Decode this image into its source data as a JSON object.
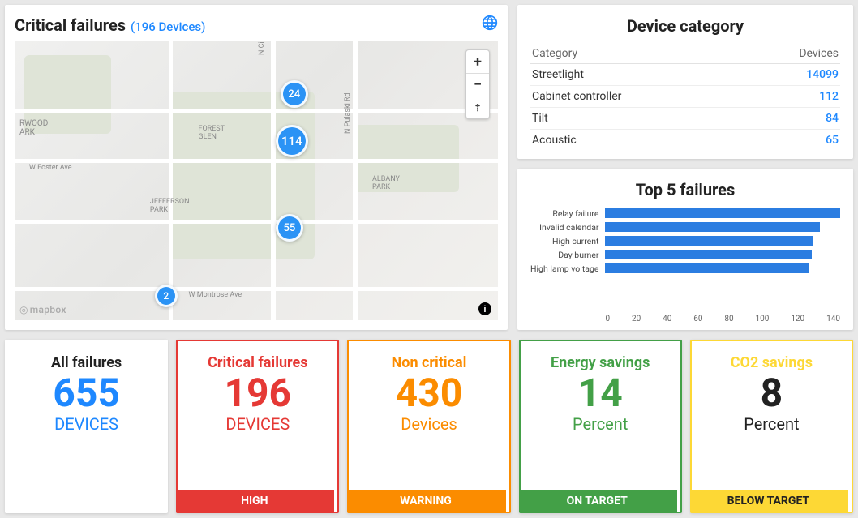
{
  "map": {
    "title": "Critical failures",
    "subtitle": "(196 Devices)",
    "attribution": "mapbox",
    "labels": {
      "rwood": "RWOOD\nARK",
      "forest": "FOREST\nGLEN",
      "jefferson": "JEFFERSON\nPARK",
      "albany": "ALBANY\nPARK",
      "foster": "W Foster Ave",
      "montrose": "W Montrose Ave",
      "cicero": "N Cicero Ave",
      "pulaski": "N Pulaski Rd"
    },
    "clusters": [
      {
        "count": 24,
        "size": "md",
        "left_pct": 55,
        "top_pct": 14
      },
      {
        "count": 114,
        "size": "lg",
        "left_pct": 54,
        "top_pct": 30
      },
      {
        "count": 55,
        "size": "md",
        "left_pct": 54,
        "top_pct": 62
      },
      {
        "count": 2,
        "size": "sm",
        "left_pct": 29,
        "top_pct": 87
      }
    ],
    "controls": {
      "zoom_in": "+",
      "zoom_out": "−",
      "compass": "⇡"
    },
    "info": "i"
  },
  "device_category": {
    "title": "Device category",
    "columns": [
      "Category",
      "Devices"
    ],
    "rows": [
      {
        "name": "Streetlight",
        "count": "14099"
      },
      {
        "name": "Cabinet controller",
        "count": "112"
      },
      {
        "name": "Tilt",
        "count": "84"
      },
      {
        "name": "Acoustic",
        "count": "65"
      }
    ]
  },
  "top_failures": {
    "title": "Top 5 failures",
    "x_max": 150,
    "x_ticks": [
      0,
      20,
      40,
      60,
      80,
      100,
      120,
      140
    ],
    "bar_color": "#2b7de1",
    "items": [
      {
        "label": "Relay failure",
        "value": 150
      },
      {
        "label": "Invalid calendar",
        "value": 137
      },
      {
        "label": "High current",
        "value": 133
      },
      {
        "label": "Day burner",
        "value": 132
      },
      {
        "label": "High lamp voltage",
        "value": 130
      }
    ]
  },
  "kpis": [
    {
      "title": "All failures",
      "value": "655",
      "unit": "DEVICES",
      "accent": "#1e88ff",
      "bordered": false,
      "footer": null,
      "dark_text": false
    },
    {
      "title": "Critical failures",
      "value": "196",
      "unit": "DEVICES",
      "accent": "#e53935",
      "bordered": true,
      "footer": "HIGH",
      "dark_text": false
    },
    {
      "title": "Non critical",
      "value": "430",
      "unit": "Devices",
      "accent": "#fb8c00",
      "bordered": true,
      "footer": "WARNING",
      "dark_text": false
    },
    {
      "title": "Energy savings",
      "value": "14",
      "unit": "Percent",
      "accent": "#43a047",
      "bordered": true,
      "footer": "ON TARGET",
      "dark_text": false
    },
    {
      "title": "CO2 savings",
      "value": "8",
      "unit": "Percent",
      "accent": "#fdd835",
      "bordered": true,
      "footer": "BELOW TARGET",
      "dark_text": true
    }
  ],
  "colors": {
    "link": "#1e88ff",
    "page_bg": "#e8e8e8"
  }
}
